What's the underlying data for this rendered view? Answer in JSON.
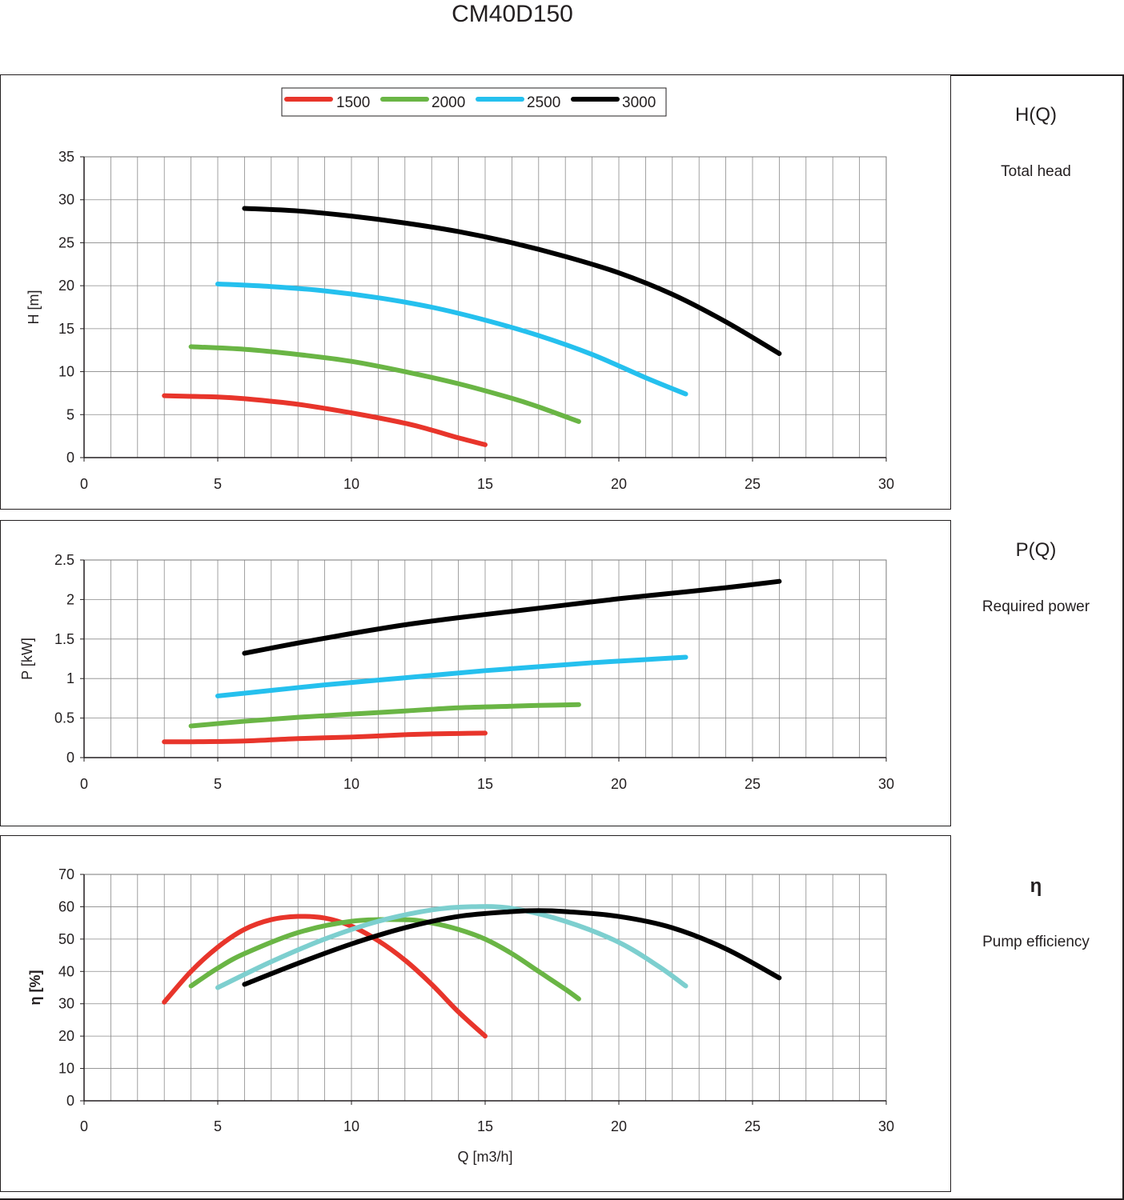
{
  "title": "CM40D150",
  "side_panels": [
    {
      "symbol": "H(Q)",
      "caption": "Total head"
    },
    {
      "symbol": "P(Q)",
      "caption": "Required power"
    },
    {
      "symbol": "η",
      "caption": "Pump efficiency"
    }
  ],
  "legend": {
    "entries": [
      {
        "label": "1500",
        "color": "#e8352b"
      },
      {
        "label": "2000",
        "color": "#6ab545"
      },
      {
        "label": "2500",
        "color": "#25c0ee"
      },
      {
        "label": "3000",
        "color": "#000000"
      }
    ],
    "placement": "top-center"
  },
  "chart_data": [
    {
      "type": "line",
      "title": "",
      "xlabel": "",
      "ylabel": "H [m]",
      "xlim": [
        0,
        30
      ],
      "ylim": [
        0,
        35
      ],
      "xticks": [
        "0",
        "5",
        "10",
        "15",
        "20",
        "25",
        "30"
      ],
      "yticks": [
        "0",
        "5",
        "10",
        "15",
        "20",
        "25",
        "30",
        "35"
      ],
      "grid": true,
      "series": [
        {
          "name": "1500",
          "color": "#e8352b",
          "x": [
            3,
            5,
            6,
            8,
            10,
            12,
            13,
            14,
            15
          ],
          "y": [
            7.2,
            7.05,
            6.85,
            6.2,
            5.2,
            4.0,
            3.2,
            2.3,
            1.5
          ]
        },
        {
          "name": "2000",
          "color": "#6ab545",
          "x": [
            4,
            6,
            8,
            10,
            12,
            14,
            16,
            17,
            18.5
          ],
          "y": [
            12.9,
            12.6,
            12.0,
            11.2,
            10.0,
            8.6,
            6.9,
            5.9,
            4.2
          ]
        },
        {
          "name": "2500",
          "color": "#25c0ee",
          "x": [
            5,
            7,
            9,
            11,
            13,
            15,
            17,
            19,
            21,
            22.5
          ],
          "y": [
            20.2,
            19.9,
            19.4,
            18.6,
            17.5,
            16.0,
            14.2,
            12.0,
            9.3,
            7.4
          ]
        },
        {
          "name": "3000",
          "color": "#000000",
          "x": [
            6,
            8,
            10,
            12,
            14,
            16,
            18,
            20,
            22,
            24,
            26
          ],
          "y": [
            29.0,
            28.7,
            28.1,
            27.3,
            26.3,
            25.0,
            23.4,
            21.5,
            19.0,
            15.8,
            12.1
          ]
        }
      ]
    },
    {
      "type": "line",
      "title": "",
      "xlabel": "",
      "ylabel": "P [kW]",
      "xlim": [
        0,
        30
      ],
      "ylim": [
        0,
        2.5
      ],
      "xticks": [
        "0",
        "5",
        "10",
        "15",
        "20",
        "25",
        "30"
      ],
      "yticks": [
        "0",
        "0.5",
        "1",
        "1.5",
        "2",
        "2.5"
      ],
      "grid": true,
      "series": [
        {
          "name": "1500",
          "color": "#e8352b",
          "x": [
            3,
            4,
            6,
            8,
            10,
            12,
            13,
            14,
            15
          ],
          "y": [
            0.2,
            0.2,
            0.21,
            0.24,
            0.26,
            0.29,
            0.3,
            0.305,
            0.31
          ]
        },
        {
          "name": "2000",
          "color": "#6ab545",
          "x": [
            4,
            6,
            8,
            10,
            12,
            14,
            16,
            17,
            18.5
          ],
          "y": [
            0.4,
            0.46,
            0.51,
            0.55,
            0.59,
            0.63,
            0.65,
            0.66,
            0.67
          ]
        },
        {
          "name": "2500",
          "color": "#25c0ee",
          "x": [
            5,
            7,
            9,
            11,
            13,
            15,
            17,
            19,
            21,
            22.5
          ],
          "y": [
            0.78,
            0.85,
            0.92,
            0.98,
            1.04,
            1.1,
            1.15,
            1.2,
            1.24,
            1.27
          ]
        },
        {
          "name": "3000",
          "color": "#000000",
          "x": [
            6,
            8,
            10,
            12,
            14,
            16,
            18,
            20,
            22,
            24,
            26
          ],
          "y": [
            1.32,
            1.45,
            1.57,
            1.68,
            1.77,
            1.85,
            1.93,
            2.01,
            2.08,
            2.15,
            2.23
          ]
        }
      ]
    },
    {
      "type": "line",
      "title": "",
      "xlabel": "Q [m3/h]",
      "ylabel": "η [%]",
      "xlim": [
        0,
        30
      ],
      "ylim": [
        0,
        70
      ],
      "xticks": [
        "0",
        "5",
        "10",
        "15",
        "20",
        "25",
        "30"
      ],
      "yticks": [
        "0",
        "10",
        "20",
        "30",
        "40",
        "50",
        "60",
        "70"
      ],
      "grid": true,
      "series": [
        {
          "name": "1500",
          "color": "#e8352b",
          "x": [
            3,
            4,
            5,
            6,
            7,
            8,
            9,
            10,
            11,
            12,
            13,
            14,
            15
          ],
          "y": [
            30.5,
            40.0,
            47.5,
            53.0,
            56.0,
            57.0,
            56.5,
            54.0,
            49.5,
            43.5,
            36.0,
            27.5,
            20.0
          ]
        },
        {
          "name": "2000",
          "color": "#6ab545",
          "x": [
            4,
            5,
            6,
            8,
            10,
            12,
            13,
            14,
            15,
            16,
            17,
            18,
            18.5
          ],
          "y": [
            35.5,
            41.0,
            45.5,
            52.0,
            55.5,
            56.0,
            55.0,
            53.0,
            50.0,
            45.5,
            40.0,
            34.5,
            31.5
          ]
        },
        {
          "name": "2500",
          "color": "#7dcfcf",
          "x": [
            5,
            7,
            9,
            11,
            13,
            14.5,
            16,
            18,
            20,
            21.5,
            22.5
          ],
          "y": [
            35.0,
            43.0,
            50.0,
            55.5,
            59.0,
            60.0,
            59.5,
            55.5,
            49.0,
            41.5,
            35.5
          ]
        },
        {
          "name": "3000",
          "color": "#000000",
          "x": [
            6,
            8,
            10,
            12,
            14,
            16,
            17,
            18,
            20,
            22,
            24,
            26
          ],
          "y": [
            36.0,
            42.5,
            48.5,
            53.5,
            57.0,
            58.5,
            58.8,
            58.5,
            57.0,
            53.5,
            47.0,
            38.0
          ]
        }
      ]
    }
  ]
}
